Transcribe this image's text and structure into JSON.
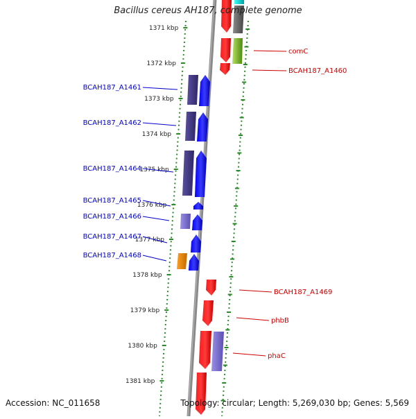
{
  "title": "Bacillus cereus AH187, complete genome",
  "footer": {
    "accession": "Accession: NC_011658",
    "summary": "Topology: circular; Length: 5,269,030 bp; Genes: 5,569"
  },
  "colors": {
    "background": "#ffffff",
    "backbone": "#888888",
    "tick": "#2a8a2a",
    "forward_gene": "#0000ff",
    "reverse_gene": "#ff0000",
    "label_blue": "#0000cc",
    "label_red": "#cc0000",
    "cog_purple": "#4a3f8a",
    "cog_lavender": "#7b6fd0",
    "cog_orange": "#f08a00",
    "cog_cyan": "#00e0e0",
    "cog_gray": "#666666",
    "cog_green": "#77bb33"
  },
  "scale_labels": [
    "1371 kbp",
    "1372 kbp",
    "1373 kbp",
    "1374 kbp",
    "1375 kbp",
    "1376 kbp",
    "1377 kbp",
    "1378 kbp",
    "1379 kbp",
    "1380 kbp",
    "1381 kbp"
  ],
  "left_labels": [
    "BCAH187_A1461",
    "BCAH187_A1462",
    "BCAH187_A1464",
    "BCAH187_A1465",
    "BCAH187_A1466",
    "BCAH187_A1467",
    "BCAH187_A1468"
  ],
  "right_labels": [
    "comC",
    "BCAH187_A1460",
    "BCAH187_A1469",
    "phbB",
    "phaC"
  ]
}
